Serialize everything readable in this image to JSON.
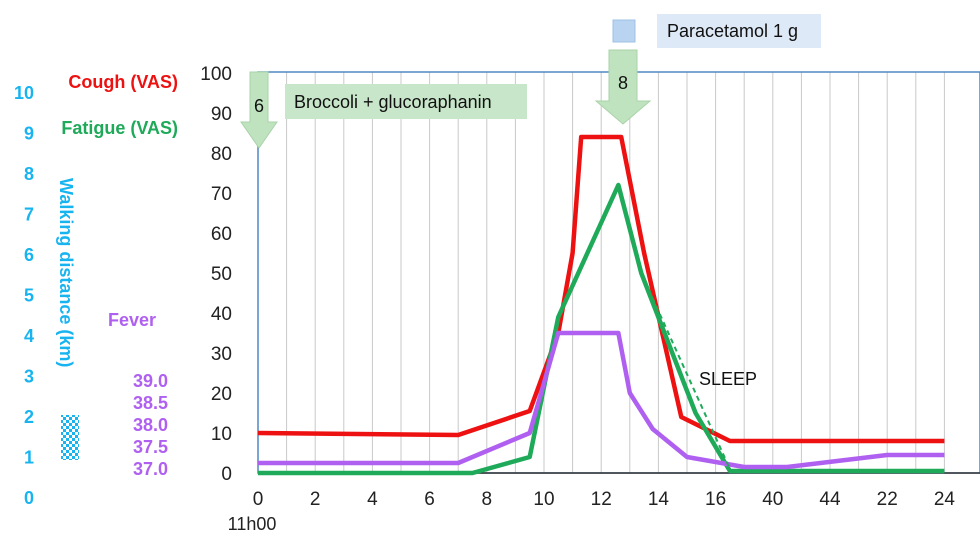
{
  "chart_data": {
    "type": "line",
    "x_ticks": [
      "0",
      "2",
      "4",
      "6",
      "8",
      "10",
      "12",
      "14",
      "16",
      "40",
      "44",
      "22",
      "24"
    ],
    "x_sublabel": "11h00",
    "ylim": [
      0,
      100
    ],
    "y_ticks": [
      "0",
      "10",
      "20",
      "30",
      "40",
      "50",
      "60",
      "70",
      "80",
      "90",
      "100"
    ],
    "grid": true,
    "axis_titles": {
      "cough": "Cough (VAS)",
      "fatigue": "Fatigue (VAS)",
      "walking": "Walking distance (km)",
      "fever": "Fever"
    },
    "walking_ticks": [
      "0",
      "1",
      "2",
      "3",
      "4",
      "5",
      "6",
      "7",
      "8",
      "9",
      "10"
    ],
    "fever_ticks": [
      "37.0",
      "37.5",
      "38.0",
      "38.5",
      "39.0"
    ],
    "series": [
      {
        "name": "Cough (VAS)",
        "color": "#ee1111",
        "points": [
          [
            0,
            10
          ],
          [
            7.0,
            9.5
          ],
          [
            9.5,
            15.5
          ],
          [
            10.5,
            35
          ],
          [
            11.0,
            55
          ],
          [
            11.3,
            84
          ],
          [
            12.7,
            84
          ],
          [
            13.5,
            55
          ],
          [
            14.8,
            14
          ],
          [
            16.5,
            8
          ],
          [
            18,
            8
          ],
          [
            24,
            8
          ]
        ]
      },
      {
        "name": "Fatigue (VAS)",
        "color": "#1faa5a",
        "points": [
          [
            0,
            0
          ],
          [
            7.5,
            0
          ],
          [
            9.5,
            4
          ],
          [
            10.5,
            39
          ],
          [
            12.6,
            72
          ],
          [
            13.4,
            50
          ],
          [
            15.3,
            15
          ],
          [
            16.5,
            0.5
          ],
          [
            24,
            0.5
          ]
        ]
      },
      {
        "name": "Fever",
        "color": "#b060f0",
        "points": [
          [
            0,
            2.5
          ],
          [
            7.0,
            2.5
          ],
          [
            9.5,
            10
          ],
          [
            10.5,
            35
          ],
          [
            12.6,
            35
          ],
          [
            13.0,
            20
          ],
          [
            13.8,
            11
          ],
          [
            15.0,
            4
          ],
          [
            17.0,
            1.5
          ],
          [
            18.5,
            1.5
          ],
          [
            22,
            4.5
          ],
          [
            24,
            4.5
          ]
        ]
      }
    ],
    "sleep_line": {
      "label": "SLEEP",
      "points": [
        [
          13.4,
          50
        ],
        [
          16.5,
          1
        ]
      ]
    },
    "annotations": [
      {
        "label": "Broccoli + glucoraphanin",
        "arrow_label": "6",
        "x": 0
      },
      {
        "label": "Paracetamol 1 g",
        "arrow_label": "8",
        "x": 12.5
      }
    ],
    "colors": {
      "arrow_fill": "#bfe3bf",
      "box_green": "#c8e6c9",
      "box_blue": "#dde9f6",
      "square_blue": "#b8d4f0",
      "walking_text": "#18b4f0",
      "axis_border": "#4d88c4"
    }
  }
}
